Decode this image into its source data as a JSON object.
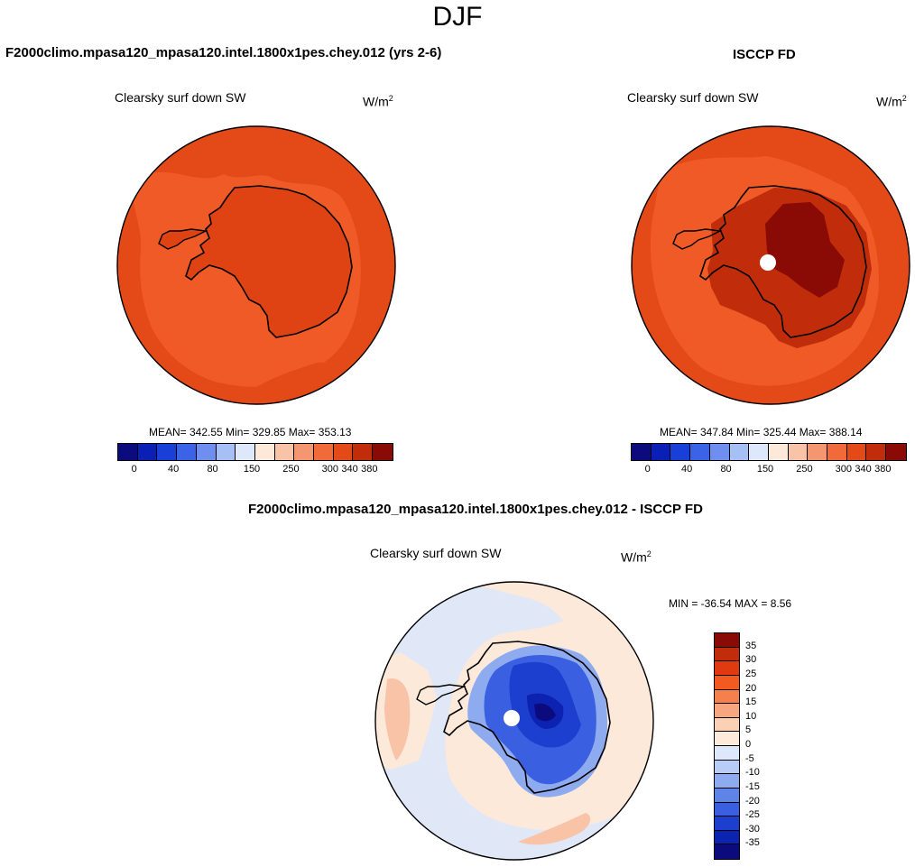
{
  "season": "DJF",
  "panels": {
    "model": {
      "title": "F2000climo.mpasa120_mpasa120.intel.1800x1pes.chey.012 (yrs 2-6)",
      "variable": "Clearsky surf down SW",
      "units_base": "W/m",
      "units_exp": "2",
      "stats": "MEAN= 342.55  Min= 329.85  Max= 353.13"
    },
    "obs": {
      "title": "ISCCP FD",
      "variable": "Clearsky surf down SW",
      "units_base": "W/m",
      "units_exp": "2",
      "stats": "MEAN= 347.84  Min= 325.44  Max= 388.14"
    },
    "diff": {
      "title": "F2000climo.mpasa120_mpasa120.intel.1800x1pes.chey.012 - ISCCP FD",
      "variable": "Clearsky surf down SW",
      "units_base": "W/m",
      "units_exp": "2",
      "stats": "MIN = -36.54 MAX =   8.56"
    }
  },
  "colorbars": {
    "abs": {
      "colors": [
        "#0b0b7e",
        "#0a1fb5",
        "#1840d8",
        "#3a63e8",
        "#6f8ff0",
        "#a6c0f5",
        "#dde8fb",
        "#fde9d9",
        "#f8c3a6",
        "#f49670",
        "#f06a3a",
        "#e34a17",
        "#c12d0b",
        "#8a0a06"
      ],
      "tick_labels": [
        "0",
        "40",
        "80",
        "150",
        "250",
        "300",
        "340",
        "380"
      ]
    },
    "diff": {
      "colors": [
        "#8a0a06",
        "#c12d0b",
        "#e23a10",
        "#f25a22",
        "#f6804c",
        "#f7a67f",
        "#fbd0b4",
        "#fdeadb",
        "#dde8fb",
        "#b8cdf6",
        "#8eabf0",
        "#5f84e8",
        "#3a5fe0",
        "#1d3fd0",
        "#0c22b0",
        "#0b0b7e"
      ],
      "tick_labels": [
        "35",
        "30",
        "25",
        "20",
        "15",
        "10",
        "5",
        "0",
        "-5",
        "-10",
        "-15",
        "-20",
        "-25",
        "-30",
        "-35"
      ]
    }
  },
  "chart_data": [
    {
      "type": "heatmap",
      "subtype": "polar stereographic map",
      "title": "F2000climo.mpasa120_mpasa120.intel.1800x1pes.chey.012 (yrs 2-6)",
      "variable": "Clearsky surf down SW",
      "units": "W/m2",
      "mean": 342.55,
      "min": 329.85,
      "max": 353.13,
      "contour_levels": [
        0,
        40,
        80,
        150,
        250,
        300,
        340,
        380
      ]
    },
    {
      "type": "heatmap",
      "subtype": "polar stereographic map",
      "title": "ISCCP FD",
      "variable": "Clearsky surf down SW",
      "units": "W/m2",
      "mean": 347.84,
      "min": 325.44,
      "max": 388.14,
      "contour_levels": [
        0,
        40,
        80,
        150,
        250,
        300,
        340,
        380
      ]
    },
    {
      "type": "heatmap",
      "subtype": "polar stereographic map (difference)",
      "title": "F2000climo.mpasa120_mpasa120.intel.1800x1pes.chey.012 - ISCCP FD",
      "variable": "Clearsky surf down SW",
      "units": "W/m2",
      "min": -36.54,
      "max": 8.56,
      "contour_levels": [
        35,
        30,
        25,
        20,
        15,
        10,
        5,
        0,
        -5,
        -10,
        -15,
        -20,
        -25,
        -30,
        -35
      ]
    }
  ]
}
